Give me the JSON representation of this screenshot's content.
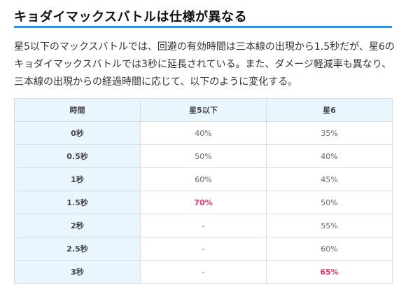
{
  "heading": "キョダイマックスバトルは仕様が異なる",
  "intro": "星5以下のマックスバトルでは、回避の有効時間は三本線の出現から1.5秒だが、星6のキョダイマックスバトルでは3秒に延長されている。また、ダメージ軽減率も異なり、三本線の出現からの経過時間に応じて、以下のように変化する。",
  "table": {
    "headers": [
      "時間",
      "星5以下",
      "星6"
    ],
    "rows": [
      {
        "time": "0秒",
        "star5": "40%",
        "star6": "35%",
        "hl5": false,
        "hl6": false
      },
      {
        "time": "0.5秒",
        "star5": "50%",
        "star6": "40%",
        "hl5": false,
        "hl6": false
      },
      {
        "time": "1秒",
        "star5": "60%",
        "star6": "45%",
        "hl5": false,
        "hl6": false
      },
      {
        "time": "1.5秒",
        "star5": "70%",
        "star6": "50%",
        "hl5": true,
        "hl6": false
      },
      {
        "time": "2秒",
        "star5": "-",
        "star6": "55%",
        "hl5": false,
        "hl6": false
      },
      {
        "time": "2.5秒",
        "star5": "-",
        "star6": "60%",
        "hl5": false,
        "hl6": false
      },
      {
        "time": "3秒",
        "star5": "-",
        "star6": "65%",
        "hl5": false,
        "hl6": true
      }
    ]
  },
  "colors": {
    "accent_underline": "#2196f3",
    "header_bg": "#eaf6fd",
    "highlight": "#e8336d"
  }
}
